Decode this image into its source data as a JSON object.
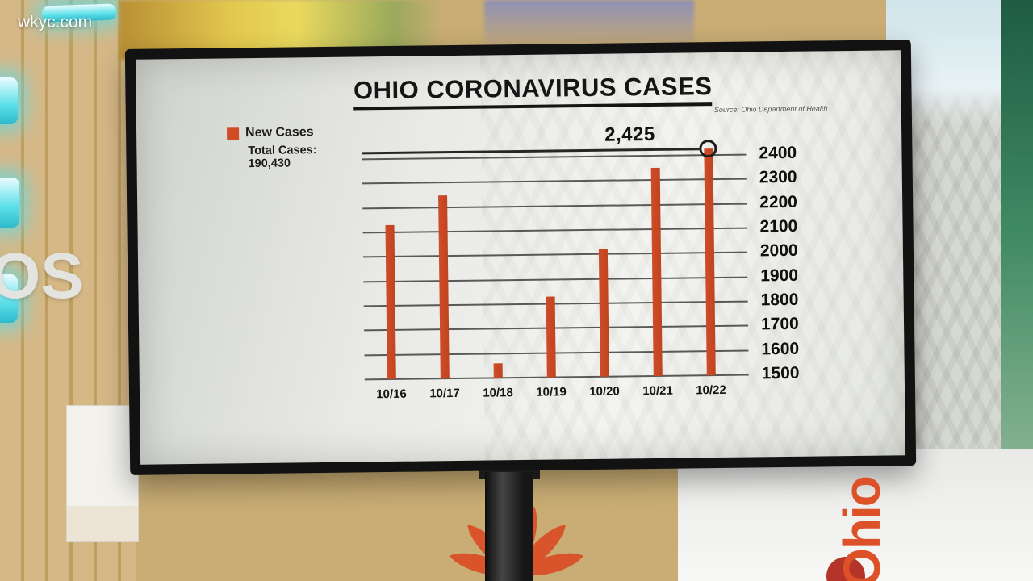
{
  "site": {
    "watermark": "wkyc.com"
  },
  "studio": {
    "left_wall_letters": "OS",
    "right_branding": "Ohio"
  },
  "chart_data": {
    "type": "bar",
    "title": "OHIO CORONAVIRUS CASES",
    "source": "Source: Ohio Department of Health",
    "legend": {
      "series_label": "New Cases",
      "total_label": "Total Cases:",
      "total_value": "190,430"
    },
    "categories": [
      "10/16",
      "10/17",
      "10/18",
      "10/19",
      "10/20",
      "10/21",
      "10/22"
    ],
    "values": [
      2130,
      2250,
      1560,
      1830,
      2020,
      2350,
      2425
    ],
    "ylim": [
      1500,
      2400
    ],
    "ytick_step": 100,
    "yticks": [
      "2400",
      "2300",
      "2200",
      "2100",
      "2000",
      "1900",
      "1800",
      "1700",
      "1600",
      "1500"
    ],
    "grid": true,
    "legend_position": "top-left",
    "bar_color": "#cf4c27",
    "annotation": {
      "label": "2,425",
      "index": 6,
      "value": 2425
    }
  }
}
